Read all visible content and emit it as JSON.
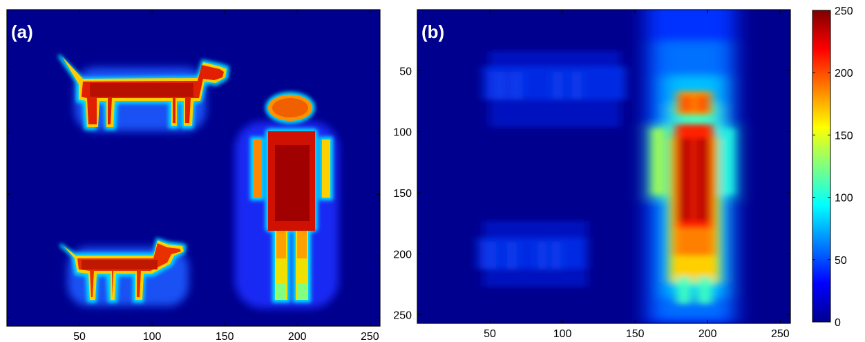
{
  "figure": {
    "panels": [
      {
        "id": "a",
        "label": "(a)"
      },
      {
        "id": "b",
        "label": "(b)"
      }
    ]
  },
  "chart_data": [
    {
      "type": "heatmap",
      "panel": "(a)",
      "description": "intensity image of two dogs and a person",
      "xlim": [
        0,
        257
      ],
      "ylim": [
        257,
        0
      ],
      "xticks": [
        50,
        100,
        150,
        200,
        250
      ],
      "yticks": [],
      "colormap": "jet",
      "background_value": 0,
      "objects": [
        {
          "name": "upper-dog-body",
          "x": [
            42,
            152
          ],
          "y": [
            42,
            70
          ],
          "value": 225
        },
        {
          "name": "person-body",
          "x": [
            184,
            214
          ],
          "y": [
            97,
            182
          ],
          "value": 240
        },
        {
          "name": "person-head",
          "x": [
            188,
            212
          ],
          "y": [
            62,
            84
          ],
          "value": 215
        },
        {
          "name": "lower-dog-body",
          "x": [
            42,
            128
          ],
          "y": [
            187,
            212
          ],
          "value": 215
        }
      ]
    },
    {
      "type": "heatmap",
      "panel": "(b)",
      "description": "blurred reconstruction",
      "xlim": [
        0,
        257
      ],
      "ylim": [
        257,
        0
      ],
      "xticks": [
        50,
        100,
        150,
        200,
        250
      ],
      "yticks": [
        50,
        100,
        150,
        200,
        250
      ],
      "colormap": "jet",
      "background_value": 0
    },
    {
      "type": "colorbar",
      "range": [
        0,
        250
      ],
      "ticks": [
        0,
        50,
        100,
        150,
        200,
        250
      ],
      "colormap": "jet"
    }
  ]
}
